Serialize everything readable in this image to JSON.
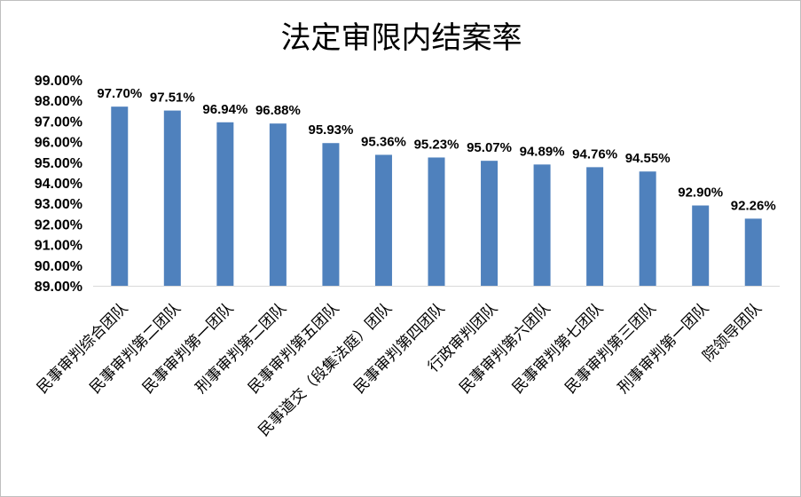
{
  "chart_data": {
    "type": "bar",
    "title": "法定审限内结案率",
    "xlabel": "",
    "ylabel": "",
    "ylim": [
      89.0,
      99.0
    ],
    "yticks": [
      "89.00%",
      "90.00%",
      "91.00%",
      "92.00%",
      "93.00%",
      "94.00%",
      "95.00%",
      "96.00%",
      "97.00%",
      "98.00%",
      "99.00%"
    ],
    "categories": [
      "民事审判综合团队",
      "民事审判第二团队",
      "民事审判第一团队",
      "刑事审判第二团队",
      "民事审判第五团队",
      "民事道交（段集法庭）团队",
      "民事审判第四团队",
      "行政审判团队",
      "民事审判第六团队",
      "民事审判第七团队",
      "民事审判第三团队",
      "刑事审判第一团队",
      "院领导团队"
    ],
    "values": [
      97.7,
      97.51,
      96.94,
      96.88,
      95.93,
      95.36,
      95.23,
      95.07,
      94.89,
      94.76,
      94.55,
      92.9,
      92.26
    ],
    "data_labels": [
      "97.70%",
      "97.51%",
      "96.94%",
      "96.88%",
      "95.93%",
      "95.36%",
      "95.23%",
      "95.07%",
      "94.89%",
      "94.76%",
      "94.55%",
      "92.90%",
      "92.26%"
    ],
    "bar_color": "#4f81bd",
    "grid": false,
    "legend": "none"
  }
}
